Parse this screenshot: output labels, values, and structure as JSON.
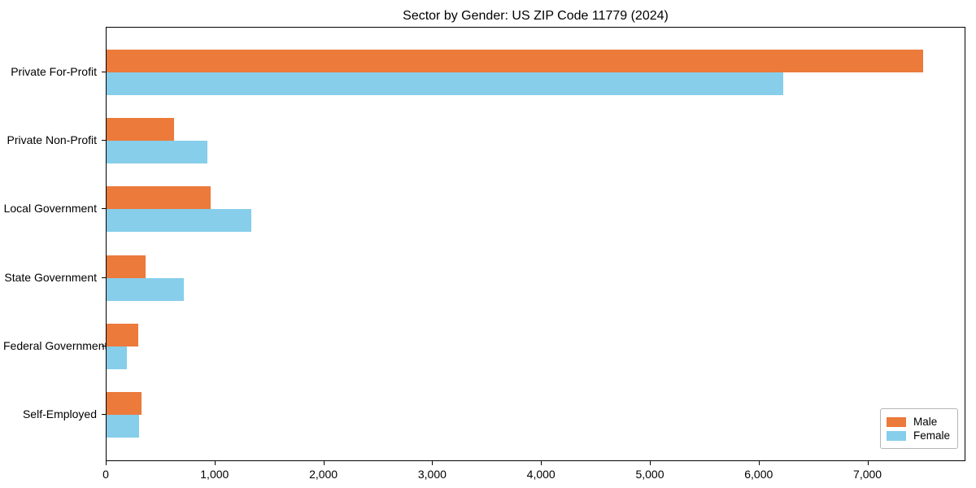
{
  "chart_data": {
    "type": "bar",
    "orientation": "horizontal",
    "title": "Sector by Gender: US ZIP Code 11779 (2024)",
    "categories": [
      "Private For-Profit",
      "Private Non-Profit",
      "Local Government",
      "State Government",
      "Federal Government",
      "Self-Employed"
    ],
    "series": [
      {
        "name": "Male",
        "color": "#EB7A3B",
        "values": [
          7500,
          620,
          960,
          360,
          290,
          320
        ]
      },
      {
        "name": "Female",
        "color": "#87CEEB",
        "values": [
          6220,
          930,
          1330,
          710,
          190,
          300
        ]
      }
    ],
    "xlabel": "",
    "ylabel": "",
    "xlim": [
      0,
      7900
    ],
    "xticks": [
      0,
      1000,
      2000,
      3000,
      4000,
      5000,
      6000,
      7000
    ],
    "xtick_labels": [
      "0",
      "1,000",
      "2,000",
      "3,000",
      "4,000",
      "5,000",
      "6,000",
      "7,000"
    ],
    "grid": false,
    "legend_position": "lower right"
  }
}
